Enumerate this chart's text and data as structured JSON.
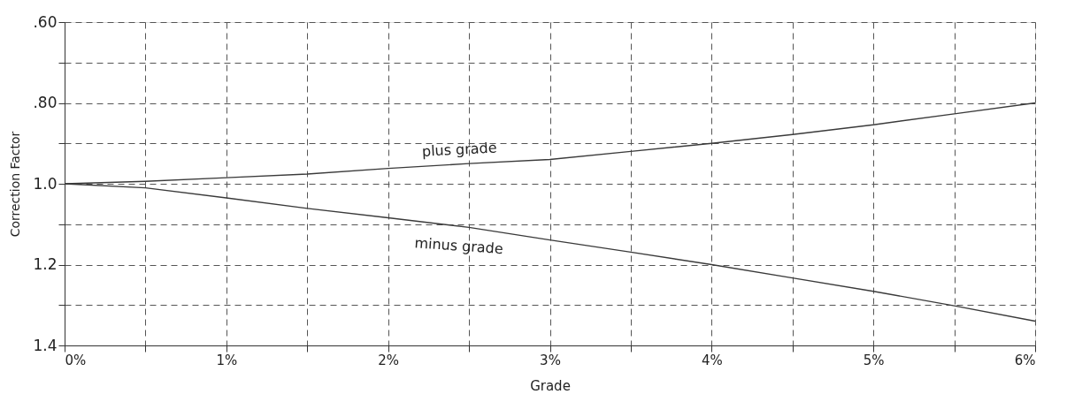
{
  "chart_data": {
    "type": "line",
    "xlabel": "Grade",
    "ylabel": "Correction Factor",
    "x": [
      0,
      0.5,
      1,
      1.5,
      2,
      2.5,
      3,
      3.5,
      4,
      4.5,
      5,
      5.5,
      6
    ],
    "series": [
      {
        "name": "plus grade",
        "color": "#3a3a3a",
        "values": [
          1.0,
          0.994,
          0.985,
          0.976,
          0.962,
          0.95,
          0.94,
          0.92,
          0.9,
          0.878,
          0.854,
          0.827,
          0.8
        ]
      },
      {
        "name": "minus grade",
        "color": "#3a3a3a",
        "values": [
          1.0,
          1.01,
          1.035,
          1.061,
          1.084,
          1.108,
          1.139,
          1.169,
          1.2,
          1.233,
          1.266,
          1.302,
          1.34
        ]
      }
    ],
    "xlim": [
      0,
      6
    ],
    "xticks": [
      {
        "value": 0,
        "label": "0%"
      },
      {
        "value": 0.5,
        "label": null
      },
      {
        "value": 1,
        "label": "1%"
      },
      {
        "value": 1.5,
        "label": null
      },
      {
        "value": 2,
        "label": "2%"
      },
      {
        "value": 2.5,
        "label": null
      },
      {
        "value": 3,
        "label": "3%"
      },
      {
        "value": 3.5,
        "label": null
      },
      {
        "value": 4,
        "label": "4%"
      },
      {
        "value": 4.5,
        "label": null
      },
      {
        "value": 5,
        "label": "5%"
      },
      {
        "value": 5.5,
        "label": null
      },
      {
        "value": 6,
        "label": "6%"
      }
    ],
    "ylim": [
      1.4,
      0.6
    ],
    "yticks": [
      {
        "value": 0.6,
        "label": ".60"
      },
      {
        "value": 0.7,
        "label": null
      },
      {
        "value": 0.8,
        "label": ".80"
      },
      {
        "value": 0.9,
        "label": null
      },
      {
        "value": 1.0,
        "label": "1.0"
      },
      {
        "value": 1.1,
        "label": null
      },
      {
        "value": 1.2,
        "label": "1.2"
      },
      {
        "value": 1.3,
        "label": null
      },
      {
        "value": 1.4,
        "label": "1.4"
      }
    ],
    "grid": true,
    "line_style": "solid",
    "marker": "none"
  }
}
